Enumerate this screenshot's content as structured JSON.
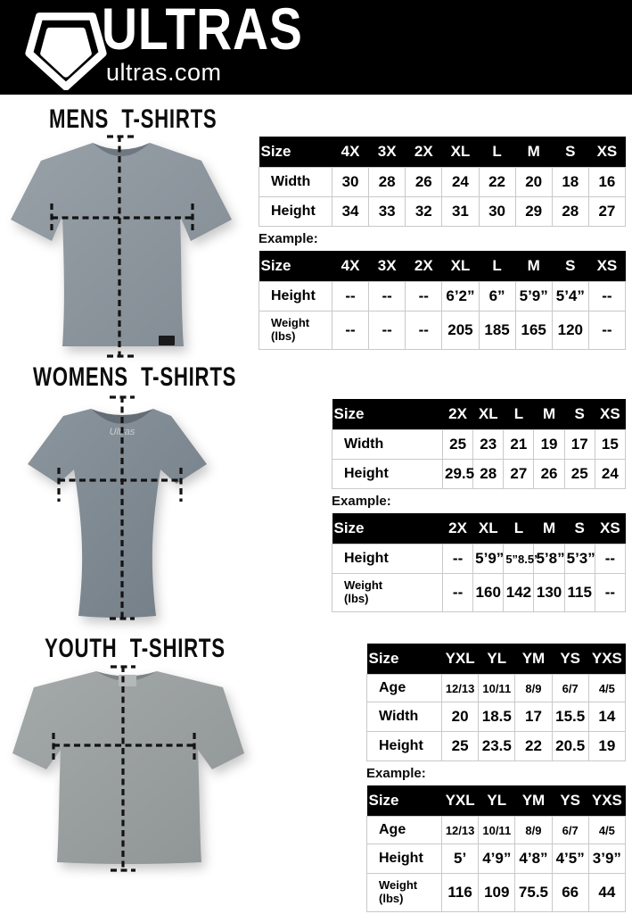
{
  "header": {
    "brand": "ULTRAS",
    "site": "ultras.com"
  },
  "icons": {
    "logo": "pentagon-logo-icon"
  },
  "colors": {
    "header_bg": "#000000",
    "header_fg": "#ffffff",
    "table_head_bg": "#000000",
    "table_head_fg": "#ffffff",
    "table_border": "#c9c9c9",
    "mens_shirt": "#8c959c",
    "womens_shirt": "#7f8992",
    "youth_shirt": "#999e9e",
    "measure_line": "#131313"
  },
  "mens": {
    "heading": "MENS T-SHIRTS",
    "shirt_image": "mens-gray-tshirt-with-measurement-lines",
    "size_table": {
      "header": [
        "Size",
        "4X",
        "3X",
        "2X",
        "XL",
        "L",
        "M",
        "S",
        "XS"
      ],
      "rows": [
        {
          "label": "Width",
          "values": [
            "30",
            "28",
            "26",
            "24",
            "22",
            "20",
            "18",
            "16"
          ]
        },
        {
          "label": "Height",
          "values": [
            "34",
            "33",
            "32",
            "31",
            "30",
            "29",
            "28",
            "27"
          ]
        }
      ]
    },
    "example_label": "Example:",
    "example_table": {
      "header": [
        "Size",
        "4X",
        "3X",
        "2X",
        "XL",
        "L",
        "M",
        "S",
        "XS"
      ],
      "rows": [
        {
          "label": "Height",
          "values": [
            "--",
            "--",
            "--",
            "6’2”",
            "6”",
            "5’9”",
            "5’4”",
            "--"
          ]
        },
        {
          "label": "Weight\n(lbs)",
          "values": [
            "--",
            "--",
            "--",
            "205",
            "185",
            "165",
            "120",
            "--"
          ]
        }
      ]
    }
  },
  "womens": {
    "heading": "WOMENS T-SHIRTS",
    "shirt_image": "womens-gray-tshirt-with-measurement-lines",
    "size_table": {
      "header": [
        "Size",
        "2X",
        "XL",
        "L",
        "M",
        "S",
        "XS"
      ],
      "rows": [
        {
          "label": "Width",
          "values": [
            "25",
            "23",
            "21",
            "19",
            "17",
            "15"
          ]
        },
        {
          "label": "Height",
          "values": [
            "29.5",
            "28",
            "27",
            "26",
            "25",
            "24"
          ]
        }
      ]
    },
    "example_label": "Example:",
    "example_table": {
      "header": [
        "Size",
        "2X",
        "XL",
        "L",
        "M",
        "S",
        "XS"
      ],
      "rows": [
        {
          "label": "Height",
          "values": [
            "--",
            "5’9”",
            "5”8.5”",
            "5’8”",
            "5’3”",
            "--"
          ]
        },
        {
          "label": "Weight\n(lbs)",
          "values": [
            "--",
            "160",
            "142",
            "130",
            "115",
            "--"
          ]
        }
      ]
    }
  },
  "youth": {
    "heading": "YOUTH T-SHIRTS",
    "shirt_image": "youth-gray-tshirt-with-measurement-lines",
    "size_table": {
      "header": [
        "Size",
        "YXL",
        "YL",
        "YM",
        "YS",
        "YXS"
      ],
      "rows": [
        {
          "label": "Age",
          "values": [
            "12/13",
            "10/11",
            "8/9",
            "6/7",
            "4/5"
          ]
        },
        {
          "label": "Width",
          "values": [
            "20",
            "18.5",
            "17",
            "15.5",
            "14"
          ]
        },
        {
          "label": "Height",
          "values": [
            "25",
            "23.5",
            "22",
            "20.5",
            "19"
          ]
        }
      ]
    },
    "example_label": "Example:",
    "example_table": {
      "header": [
        "Size",
        "YXL",
        "YL",
        "YM",
        "YS",
        "YXS"
      ],
      "rows": [
        {
          "label": "Age",
          "values": [
            "12/13",
            "10/11",
            "8/9",
            "6/7",
            "4/5"
          ]
        },
        {
          "label": "Height",
          "values": [
            "5’",
            "4’9”",
            "4’8”",
            "4’5”",
            "3’9”"
          ]
        },
        {
          "label": "Weight\n(lbs)",
          "values": [
            "116",
            "109",
            "75.5",
            "66",
            "44"
          ]
        }
      ]
    }
  }
}
